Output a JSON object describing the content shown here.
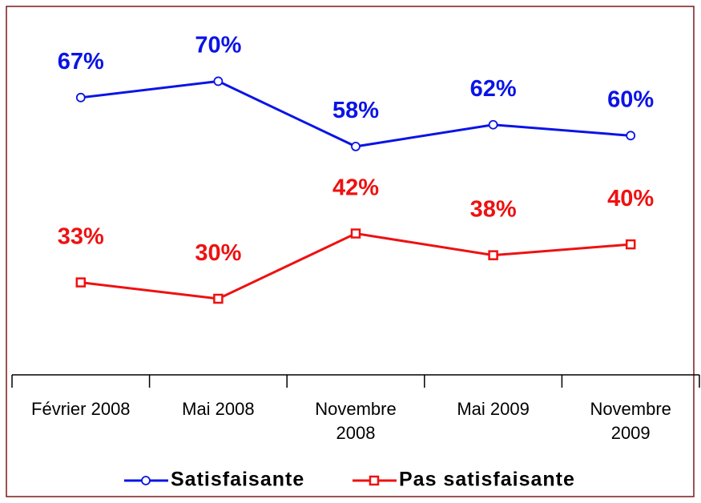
{
  "chart_data": {
    "type": "line",
    "categories": [
      "Février 2008",
      "Mai 2008",
      "Novembre 2008",
      "Mai 2009",
      "Novembre 2009"
    ],
    "series": [
      {
        "name": "Satisfaisante",
        "color": "#0a14e6",
        "marker": "circle",
        "values": [
          67,
          70,
          58,
          62,
          60
        ],
        "value_labels": [
          "67%",
          "70%",
          "58%",
          "62%",
          "60%"
        ]
      },
      {
        "name": "Pas satisfaisante",
        "color": "#ee1111",
        "marker": "square",
        "values": [
          33,
          30,
          42,
          38,
          40
        ],
        "value_labels": [
          "33%",
          "30%",
          "42%",
          "38%",
          "40%"
        ]
      }
    ],
    "ylim": [
      16,
      82
    ],
    "grid": false,
    "legend": "bottom"
  }
}
